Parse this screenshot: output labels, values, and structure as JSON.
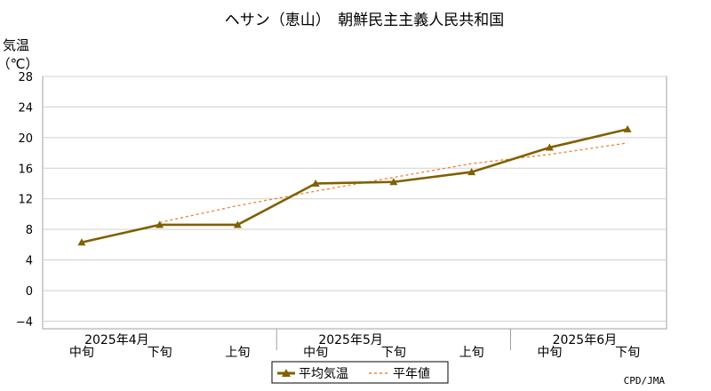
{
  "chart_data": {
    "type": "line",
    "title": "ヘサン（恵山）　朝鮮民主主義人民共和国",
    "ylabel": "気温",
    "yunit": "（℃）",
    "ylim": [
      -5,
      28
    ],
    "yticks": [
      "28",
      "24",
      "20",
      "16",
      "12",
      "8",
      "4",
      "0",
      "−4"
    ],
    "ytick_values": [
      28,
      24,
      20,
      16,
      12,
      8,
      4,
      0,
      -4
    ],
    "grid": true,
    "categories": [
      "中旬",
      "下旬",
      "上旬",
      "中旬",
      "下旬",
      "上旬",
      "中旬",
      "下旬"
    ],
    "months": [
      {
        "label": "2025年4月",
        "index": 0
      },
      {
        "label": "2025年5月",
        "index": 3
      },
      {
        "label": "2025年6月",
        "index": 6
      }
    ],
    "series": [
      {
        "name": "平均気温",
        "values": [
          6.3,
          8.6,
          8.6,
          14.0,
          14.2,
          15.5,
          18.7,
          21.1
        ],
        "color": "#806000",
        "style": "solid-triangle"
      },
      {
        "name": "平年値",
        "values": [
          null,
          8.9,
          11.1,
          13.0,
          14.8,
          16.6,
          17.8,
          19.3
        ],
        "color": "#f08030",
        "style": "dashed"
      }
    ],
    "legend_position": "bottom-center",
    "credit": "CPD/JMA"
  }
}
